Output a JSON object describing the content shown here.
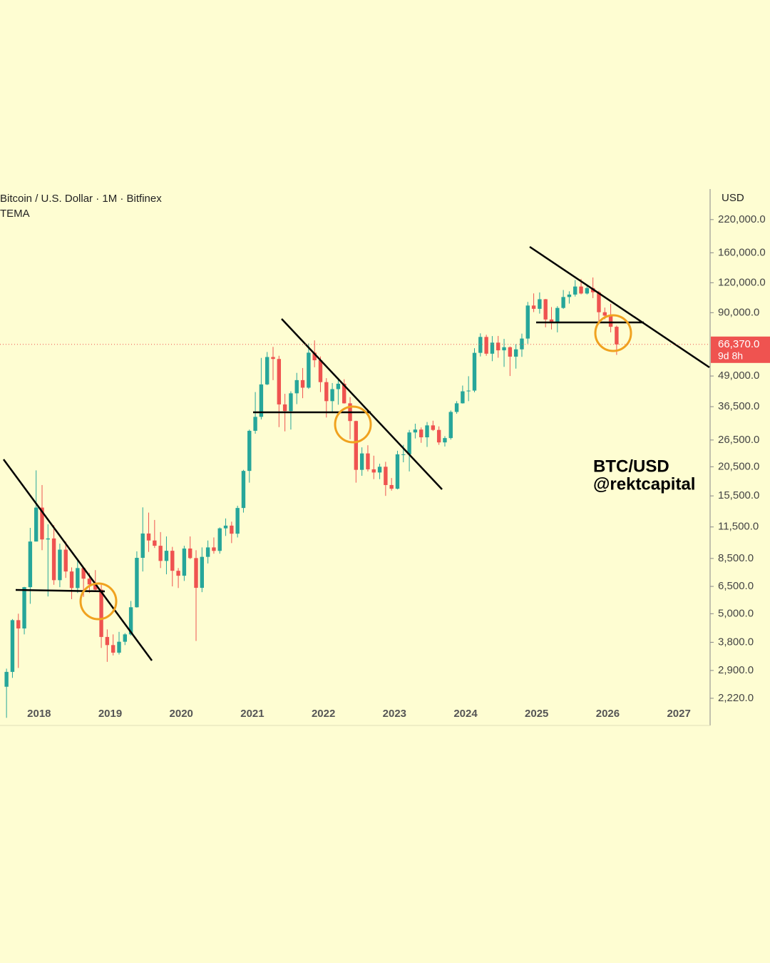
{
  "chart_data": {
    "type": "candlestick",
    "title": "Bitcoin / U.S. Dollar · 1M · Bitfinex",
    "indicator": "TEMA",
    "axis_unit": "USD",
    "annotation": [
      "BTC/USD",
      "@rektcapital"
    ],
    "log_scale": true,
    "up_color": "#26a69a",
    "down_color": "#ef5350",
    "xlim": [
      2017.45,
      2027.43
    ],
    "xticks": [
      2018,
      2019,
      2020,
      2021,
      2022,
      2023,
      2024,
      2025,
      2026,
      2027
    ],
    "ylim": [
      1710,
      295000
    ],
    "yticks": [
      {
        "value": 2220,
        "label": "2,220.0"
      },
      {
        "value": 2900,
        "label": "2,900.0"
      },
      {
        "value": 3800,
        "label": "3,800.0"
      },
      {
        "value": 5000,
        "label": "5,000.0"
      },
      {
        "value": 6500,
        "label": "6,500.0"
      },
      {
        "value": 8500,
        "label": "8,500.0"
      },
      {
        "value": 11500,
        "label": "11,500.0"
      },
      {
        "value": 15500,
        "label": "15,500.0"
      },
      {
        "value": 20500,
        "label": "20,500.0"
      },
      {
        "value": 26500,
        "label": "26,500.0"
      },
      {
        "value": 36500,
        "label": "36,500.0"
      },
      {
        "value": 49000,
        "label": "49,000.0"
      },
      {
        "value": 90000,
        "label": "90,000.0"
      },
      {
        "value": 120000,
        "label": "120,000.0"
      },
      {
        "value": 160000,
        "label": "160,000.0"
      },
      {
        "value": 220000,
        "label": "220,000.0"
      }
    ],
    "last_price": {
      "value": 66370,
      "label": "66,370.0",
      "countdown": "9d 8h"
    },
    "x": [
      "2017-07",
      "2017-08",
      "2017-09",
      "2017-10",
      "2017-11",
      "2017-12",
      "2018-01",
      "2018-02",
      "2018-03",
      "2018-04",
      "2018-05",
      "2018-06",
      "2018-07",
      "2018-08",
      "2018-09",
      "2018-10",
      "2018-11",
      "2018-12",
      "2019-01",
      "2019-02",
      "2019-03",
      "2019-04",
      "2019-05",
      "2019-06",
      "2019-07",
      "2019-08",
      "2019-09",
      "2019-10",
      "2019-11",
      "2019-12",
      "2020-01",
      "2020-02",
      "2020-03",
      "2020-04",
      "2020-05",
      "2020-06",
      "2020-07",
      "2020-08",
      "2020-09",
      "2020-10",
      "2020-11",
      "2020-12",
      "2021-01",
      "2021-02",
      "2021-03",
      "2021-04",
      "2021-05",
      "2021-06",
      "2021-07",
      "2021-08",
      "2021-09",
      "2021-10",
      "2021-11",
      "2021-12",
      "2022-01",
      "2022-02",
      "2022-03",
      "2022-04",
      "2022-05",
      "2022-06",
      "2022-07",
      "2022-08",
      "2022-09",
      "2022-10",
      "2022-11",
      "2022-12",
      "2023-01",
      "2023-02",
      "2023-03",
      "2023-04",
      "2023-05",
      "2023-06",
      "2023-07",
      "2023-08",
      "2023-09",
      "2023-10",
      "2023-11",
      "2023-12",
      "2024-01",
      "2024-02",
      "2024-03",
      "2024-04",
      "2024-05",
      "2024-06",
      "2024-07",
      "2024-08",
      "2024-09",
      "2024-10",
      "2024-11",
      "2024-12",
      "2025-01",
      "2025-02",
      "2025-03",
      "2025-04",
      "2025-05",
      "2025-06",
      "2025-07",
      "2025-08",
      "2025-09",
      "2025-10",
      "2025-11",
      "2025-12",
      "2026-01",
      "2026-02"
    ],
    "open": [
      2480,
      2860,
      4700,
      4340,
      6450,
      10000,
      13850,
      10200,
      10300,
      6900,
      9250,
      7500,
      6400,
      7750,
      7000,
      6620,
      6300,
      4000,
      3700,
      3440,
      3820,
      4100,
      5320,
      8550,
      10800,
      10100,
      9600,
      8300,
      9150,
      7550,
      7200,
      9350,
      8530,
      6410,
      8630,
      9450,
      9140,
      11350,
      11650,
      10780,
      13800,
      19700,
      28950,
      33100,
      45200,
      58800,
      57700,
      37300,
      35000,
      41500,
      47100,
      43800,
      61300,
      57000,
      46200,
      38500,
      43200,
      45500,
      37700,
      31800,
      19900,
      23300,
      20000,
      19400,
      20500,
      17200,
      16600,
      23100,
      23100,
      28500,
      29300,
      27200,
      30500,
      29200,
      25900,
      27000,
      34700,
      37700,
      42300,
      42600,
      61200,
      71300,
      60700,
      67500,
      62700,
      64600,
      59000,
      63300,
      70200,
      96400,
      93400,
      102400,
      84300,
      82500,
      94200,
      104600,
      107100,
      115700,
      108200,
      114000,
      109500,
      90400,
      87500,
      78600
    ],
    "high": [
      2950,
      4750,
      5000,
      6470,
      11400,
      19800,
      17200,
      11800,
      11700,
      9800,
      10000,
      7800,
      8500,
      7760,
      7400,
      7600,
      6600,
      4300,
      4100,
      4200,
      4150,
      5650,
      9100,
      13880,
      13200,
      12300,
      10950,
      10500,
      9500,
      7750,
      9600,
      10500,
      9200,
      9450,
      10100,
      10400,
      11450,
      12480,
      12100,
      14100,
      19900,
      29300,
      42000,
      58300,
      61700,
      64800,
      59500,
      41300,
      42300,
      50500,
      52900,
      67000,
      69000,
      59100,
      48000,
      45800,
      48200,
      47500,
      40000,
      31900,
      24700,
      25200,
      22800,
      21100,
      21500,
      18400,
      23900,
      25300,
      29200,
      31000,
      29900,
      31500,
      31900,
      30200,
      27500,
      35200,
      38500,
      44700,
      48900,
      64000,
      73800,
      72800,
      71900,
      72000,
      70000,
      65100,
      66500,
      73600,
      99800,
      108300,
      109300,
      102700,
      95000,
      95800,
      111900,
      110500,
      123200,
      124500,
      117900,
      126200,
      111000,
      94500,
      98000,
      79500
    ],
    "low": [
      1840,
      2700,
      2970,
      4100,
      5500,
      10000,
      9200,
      5900,
      6600,
      6450,
      7050,
      5750,
      6100,
      5880,
      6100,
      6200,
      3600,
      3150,
      3350,
      3380,
      3700,
      4050,
      5300,
      7500,
      9050,
      9400,
      7750,
      7300,
      6500,
      6400,
      6850,
      8450,
      3850,
      6150,
      8100,
      8900,
      8900,
      10550,
      9850,
      10400,
      13200,
      17600,
      28150,
      32300,
      44900,
      47100,
      30000,
      28800,
      29300,
      37400,
      39600,
      43300,
      53300,
      42000,
      32900,
      34300,
      37200,
      37600,
      26700,
      17600,
      18800,
      19600,
      18200,
      18200,
      15500,
      16300,
      16500,
      21400,
      19600,
      26900,
      25800,
      24800,
      28900,
      25300,
      24900,
      26600,
      34100,
      37600,
      38500,
      41900,
      59100,
      59500,
      56500,
      58400,
      53500,
      49000,
      52600,
      58900,
      66800,
      90500,
      89200,
      78200,
      76600,
      74500,
      93300,
      98200,
      105100,
      107300,
      107200,
      103500,
      80500,
      84500,
      74500,
      60000
    ],
    "close": [
      2860,
      4700,
      4340,
      6450,
      10000,
      13850,
      10200,
      10300,
      6900,
      9250,
      7500,
      6400,
      7750,
      7000,
      6620,
      6300,
      4000,
      3700,
      3440,
      3820,
      4100,
      5320,
      8550,
      10800,
      10100,
      9600,
      8300,
      9150,
      7550,
      7200,
      9350,
      8530,
      6410,
      8630,
      9450,
      9140,
      11350,
      11650,
      10780,
      13800,
      19700,
      28950,
      33100,
      45200,
      58800,
      57700,
      37300,
      35000,
      41500,
      47100,
      43800,
      61300,
      57000,
      46200,
      38500,
      43200,
      45500,
      37700,
      31800,
      19900,
      23300,
      20000,
      19400,
      20500,
      17200,
      16600,
      23100,
      23100,
      28500,
      29300,
      27200,
      30500,
      29200,
      25900,
      27000,
      34700,
      37700,
      42300,
      42600,
      61200,
      71300,
      60700,
      67500,
      62700,
      64600,
      59000,
      63300,
      70200,
      96400,
      93400,
      102400,
      84300,
      82500,
      94200,
      104600,
      107100,
      115700,
      108200,
      114000,
      109500,
      90400,
      87500,
      78600,
      66370
    ]
  }
}
